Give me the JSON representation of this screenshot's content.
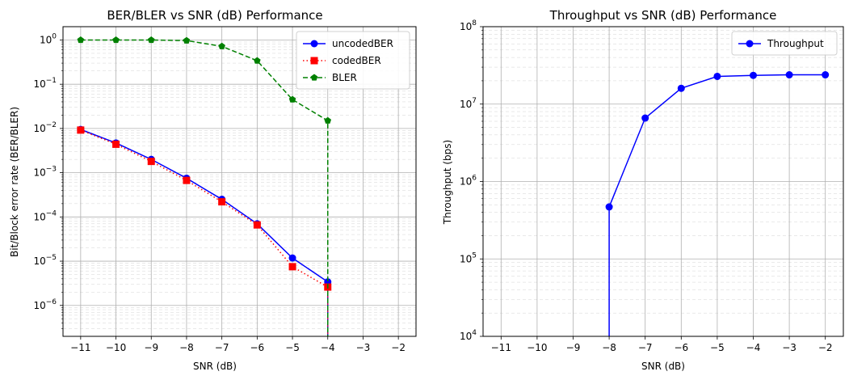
{
  "colors": {
    "uncoded": "#0000ff",
    "coded": "#ff0000",
    "bler": "#008000",
    "throughput": "#0000ff"
  },
  "chart_data": [
    {
      "type": "line",
      "title": "BER/BLER vs SNR (dB) Performance",
      "xlabel": "SNR (dB)",
      "ylabel": "Bit/Block error rate (BER/BLER)",
      "yscale": "log",
      "xlim": [
        -11.5,
        -1.5
      ],
      "ylim": [
        2e-07,
        2
      ],
      "xticks": [
        -11,
        -10,
        -9,
        -8,
        -7,
        -6,
        -5,
        -4,
        -3,
        -2
      ],
      "yticks_exp": [
        -6,
        -5,
        -4,
        -3,
        -2,
        -1,
        0
      ],
      "grid": true,
      "legend": "top-right",
      "x": [
        -11,
        -10,
        -9,
        -8,
        -7,
        -6,
        -5,
        -4
      ],
      "series": [
        {
          "name": "uncodedBER",
          "values": [
            0.0095,
            0.0047,
            0.002,
            0.00075,
            0.00025,
            7e-05,
            1.18e-05,
            3.4e-06
          ],
          "style": "solid",
          "marker": "circle",
          "color_key": "uncoded"
        },
        {
          "name": "codedBER",
          "values": [
            0.0092,
            0.0044,
            0.0018,
            0.00067,
            0.00022,
            6.6e-05,
            7.5e-06,
            2.6e-06
          ],
          "style": "dotted",
          "marker": "square",
          "color_key": "coded"
        },
        {
          "name": "BLER",
          "values": [
            1.0,
            1.0,
            1.0,
            0.97,
            0.72,
            0.34,
            0.045,
            0.015
          ],
          "style": "dashed",
          "marker": "pentagon",
          "color_key": "bler"
        }
      ]
    },
    {
      "type": "line",
      "title": "Throughput vs SNR (dB) Performance",
      "xlabel": "SNR (dB)",
      "ylabel": "Throughput (bps)",
      "yscale": "log",
      "xlim": [
        -11.5,
        -1.5
      ],
      "ylim": [
        10000,
        100000000
      ],
      "xticks": [
        -11,
        -10,
        -9,
        -8,
        -7,
        -6,
        -5,
        -4,
        -3,
        -2
      ],
      "yticks_exp": [
        4,
        5,
        6,
        7,
        8
      ],
      "grid": true,
      "legend": "top-right",
      "x": [
        -8,
        -7,
        -6,
        -5,
        -4,
        -3,
        -2
      ],
      "series": [
        {
          "name": "Throughput",
          "values": [
            470000,
            6600000,
            16000000,
            22800000,
            23500000,
            23900000,
            23900000
          ],
          "style": "solid",
          "marker": "circle",
          "color_key": "throughput"
        }
      ]
    }
  ]
}
